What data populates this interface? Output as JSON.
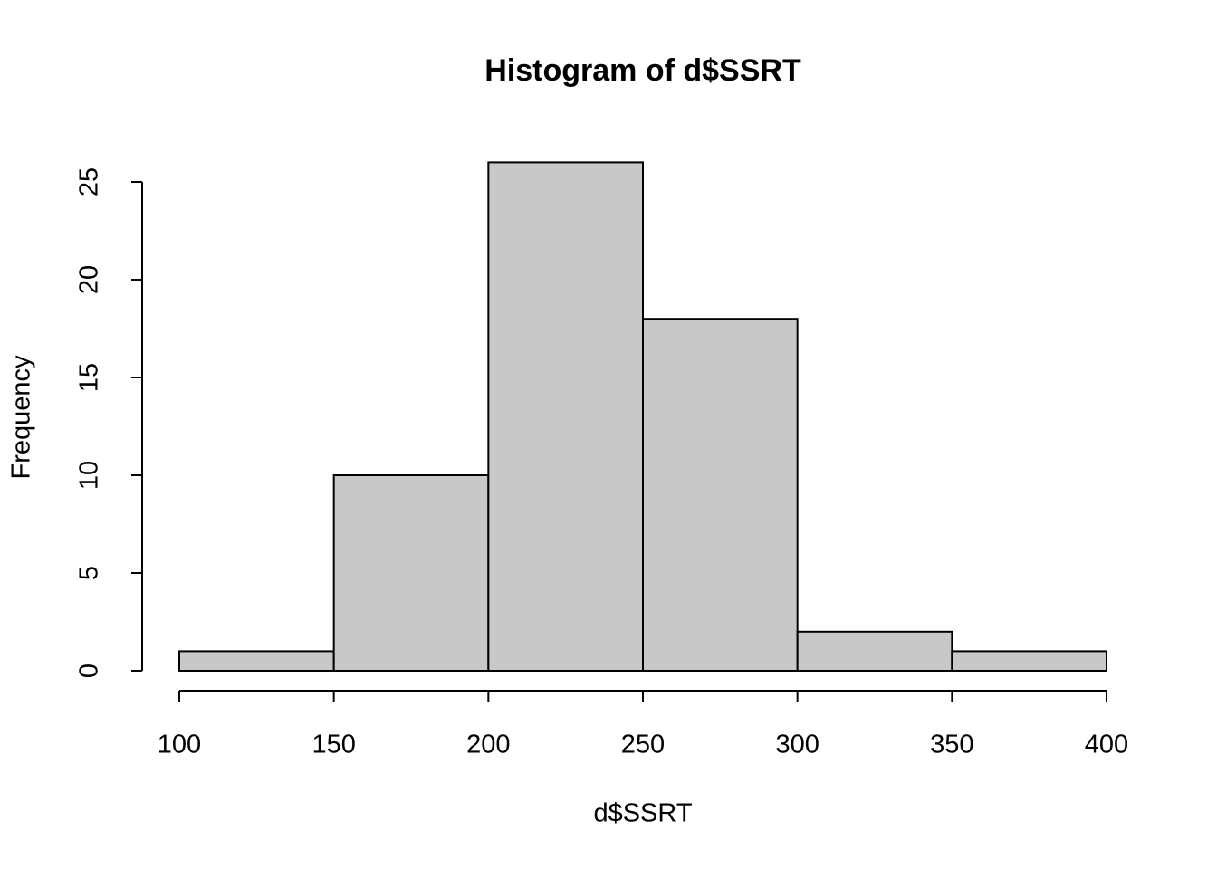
{
  "chart_data": {
    "type": "histogram",
    "title": "Histogram of d$SSRT",
    "x_label": "d$SSRT",
    "y_label": "Frequency",
    "bins": [
      100,
      150,
      200,
      250,
      300,
      350,
      400
    ],
    "values": [
      1,
      10,
      26,
      18,
      2,
      1
    ],
    "color": "#c8c8c8",
    "xlim": [
      100,
      400
    ],
    "ylim": [
      0,
      26
    ],
    "xticks": [
      100,
      150,
      200,
      250,
      300,
      350,
      400
    ],
    "yticks": [
      0,
      5,
      10,
      15,
      20,
      25
    ]
  }
}
